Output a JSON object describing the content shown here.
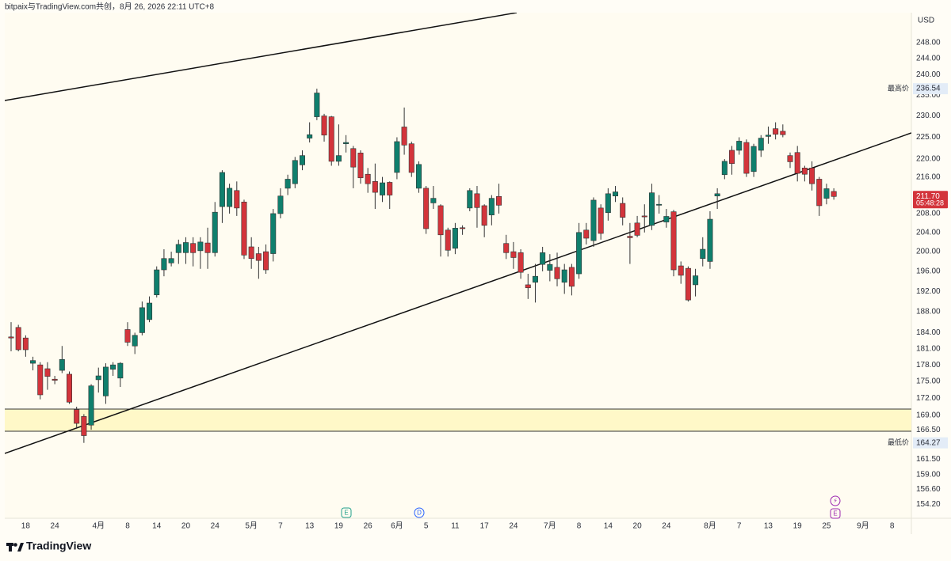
{
  "header": {
    "title": "bitpaix与TradingView.com共创，8月 26, 2026 22:11 UTC+8"
  },
  "footer": {
    "brand": "TradingView"
  },
  "chart_data": {
    "type": "candlestick",
    "currency": "USD",
    "log_scale": true,
    "grid": false,
    "up_color": "#0f7f6d",
    "down_color": "#d3343b",
    "categories": [
      null,
      null,
      "18",
      null,
      null,
      null,
      "24",
      null,
      null,
      null,
      null,
      null,
      "4月",
      null,
      null,
      null,
      "8",
      null,
      null,
      null,
      "14",
      null,
      null,
      null,
      "20",
      null,
      null,
      null,
      "24",
      null,
      null,
      null,
      null,
      "5月",
      null,
      null,
      null,
      "7",
      null,
      null,
      null,
      "13",
      null,
      null,
      null,
      "19",
      null,
      null,
      null,
      "26",
      null,
      null,
      null,
      "6月",
      null,
      null,
      null,
      "5",
      null,
      null,
      null,
      "11",
      null,
      null,
      null,
      "17",
      null,
      null,
      null,
      "24",
      null,
      null,
      null,
      null,
      "7月",
      null,
      null,
      null,
      "8",
      null,
      null,
      null,
      "14",
      null,
      null,
      null,
      "20",
      null,
      null,
      null,
      "24",
      null,
      null,
      null,
      null,
      null,
      "8月",
      null,
      null,
      null,
      "7",
      null,
      null,
      null,
      "13",
      null,
      null,
      null,
      "19",
      null,
      null,
      null,
      "25",
      null,
      null,
      null,
      null,
      "9月",
      null,
      null,
      null,
      "8",
      null,
      null
    ],
    "open": [
      183.2,
      185,
      183,
      178.3,
      178,
      177.3,
      175.4,
      177,
      176.3,
      170,
      168.8,
      167.3,
      175.3,
      172.4,
      177.2,
      175.6,
      184.6,
      181.5,
      184,
      186.5,
      191.3,
      196.3,
      197.7,
      199.8,
      199.8,
      201.7,
      200.2,
      201.8,
      199.8,
      209.5,
      209.5,
      213,
      210.5,
      201,
      199.6,
      200,
      199.6,
      208,
      213.5,
      214.5,
      218.7,
      224.8,
      229.8,
      230,
      229.8,
      219.5,
      223.5,
      222.4,
      221.4,
      216.6,
      215,
      212,
      214.8,
      217,
      227.4,
      223.5,
      213.5,
      213.5,
      210.3,
      209.7,
      204.5,
      200.7,
      205,
      209.2,
      212.3,
      209.7,
      207.7,
      211.7,
      201.7,
      200,
      199.8,
      193.3,
      193.8,
      197.4,
      196.2,
      196.8,
      193.8,
      196.8,
      195.5,
      204.5,
      202.3,
      209.2,
      208.2,
      211.8,
      210.2,
      203.2,
      206,
      207.5,
      205.5,
      209.8,
      206.2,
      208.4,
      197.1,
      196.6,
      193.3,
      198.6,
      198,
      211.8,
      216.5,
      222,
      222,
      223.8,
      217.2,
      222,
      225.2,
      227,
      226.4,
      220.8,
      221.5,
      218,
      218,
      215.5,
      211.3,
      212.8,
      null,
      null,
      null,
      null,
      null,
      null,
      null,
      null,
      null,
      null
    ],
    "high": [
      186,
      185.5,
      183.5,
      179.5,
      178.5,
      178.5,
      176,
      181.5,
      176.8,
      170.5,
      169.2,
      174.5,
      177.5,
      178.3,
      178.5,
      178.5,
      186,
      184,
      190,
      191,
      197,
      200.5,
      200,
      202.5,
      203,
      203,
      203,
      205,
      210.5,
      217.5,
      214.5,
      215,
      211,
      203,
      201,
      201.5,
      209,
      213.5,
      216.5,
      220.5,
      222,
      228.5,
      236.54,
      230.5,
      230,
      228,
      225.5,
      223,
      222,
      218,
      219,
      216,
      215,
      225,
      232,
      224,
      219.5,
      214,
      214,
      210,
      205,
      206,
      205.5,
      213.5,
      214,
      210,
      212,
      214.5,
      203.5,
      202,
      200.5,
      195.5,
      197.5,
      201,
      199.5,
      199.8,
      197.5,
      197.5,
      206,
      206,
      211.5,
      210,
      213.5,
      214,
      211.5,
      206,
      207.5,
      210,
      214.5,
      212,
      209,
      208.8,
      198,
      197,
      196.5,
      203,
      208.5,
      213.5,
      220,
      223,
      225,
      224.5,
      223.5,
      225.5,
      227.5,
      228.5,
      228,
      221.5,
      223,
      218.5,
      219.5,
      216,
      214.5,
      213.5,
      null,
      null,
      null,
      null,
      null,
      null,
      null,
      null,
      null,
      null
    ],
    "low": [
      180.5,
      180.5,
      179.5,
      177,
      171.8,
      173.5,
      174.5,
      176.5,
      171,
      166.8,
      164.27,
      166.5,
      173,
      171,
      176,
      174,
      181.5,
      180,
      183.5,
      186,
      190.8,
      195,
      197,
      197.5,
      197.5,
      197,
      196.5,
      196.5,
      199,
      206,
      208,
      207.5,
      198.5,
      196.5,
      194.5,
      195.5,
      198,
      207,
      212,
      213.5,
      217.5,
      223.8,
      229,
      224,
      218.5,
      218.5,
      221.5,
      213.5,
      214.5,
      212.5,
      209,
      210.5,
      209,
      215.5,
      221,
      216,
      212.5,
      203.7,
      209,
      199,
      199,
      199.5,
      203.5,
      208.5,
      205,
      203,
      205.5,
      208,
      198.5,
      196.5,
      194.5,
      190.5,
      189.8,
      196,
      194,
      193,
      191.5,
      191.2,
      194.5,
      201.5,
      201,
      202.5,
      206.5,
      210.5,
      205.5,
      197.5,
      203,
      204,
      204.5,
      208,
      205,
      195,
      193.5,
      190,
      191,
      197,
      196.5,
      209,
      215.5,
      216.5,
      221,
      216,
      216,
      220.5,
      223.5,
      224.5,
      225,
      218,
      215,
      215,
      213,
      207.5,
      210,
      211,
      null,
      null,
      null,
      null,
      null,
      null,
      null,
      null,
      null,
      null
    ],
    "close": [
      183,
      180.8,
      180.8,
      178.8,
      172.6,
      175.9,
      175.2,
      179,
      171.3,
      167.6,
      165.5,
      174.2,
      176,
      177.6,
      178,
      178.3,
      182.2,
      183.5,
      188.8,
      189.7,
      196.3,
      198.6,
      198.6,
      201.5,
      201.9,
      199.8,
      202,
      199.8,
      208.3,
      217,
      213.5,
      209.2,
      199.3,
      198.6,
      198.2,
      196.3,
      208,
      211.8,
      215.5,
      219.7,
      220.8,
      225.6,
      235.5,
      225.5,
      219.5,
      220.8,
      223.8,
      218.2,
      215.8,
      214.5,
      212.6,
      214.7,
      212,
      224,
      223.2,
      217,
      218.8,
      204.8,
      211.3,
      203.5,
      200.3,
      204.9,
      204.8,
      213,
      209.3,
      205.5,
      211.3,
      209.8,
      199.8,
      198.8,
      195.8,
      192.7,
      195,
      199.8,
      197.4,
      194.5,
      196.3,
      193,
      204,
      202.8,
      210.9,
      203.8,
      212.3,
      212.7,
      207.2,
      202.9,
      203.4,
      207.3,
      212.5,
      210,
      207.4,
      196.3,
      195.2,
      190.3,
      195.1,
      200.5,
      206.8,
      212.3,
      219.5,
      219,
      224.1,
      216.8,
      222.9,
      224.8,
      225.5,
      225.7,
      225.6,
      219.4,
      216.8,
      216.6,
      214.5,
      209.7,
      213.4,
      211.7,
      null,
      null,
      null,
      null,
      null,
      null,
      null,
      null,
      null,
      null
    ],
    "ylim": [
      152,
      255.8
    ],
    "yticks": [
      {
        "value": 248,
        "label": "248.00"
      },
      {
        "value": 244,
        "label": "244.00"
      },
      {
        "value": 240,
        "label": "240.00"
      },
      {
        "value": 235,
        "label": "235.00"
      },
      {
        "value": 230,
        "label": "230.00"
      },
      {
        "value": 225,
        "label": "225.00"
      },
      {
        "value": 220,
        "label": "220.00"
      },
      {
        "value": 216,
        "label": "216.00"
      },
      {
        "value": 208,
        "label": "208.00"
      },
      {
        "value": 204,
        "label": "204.00"
      },
      {
        "value": 200,
        "label": "200.00"
      },
      {
        "value": 196,
        "label": "196.00"
      },
      {
        "value": 192,
        "label": "192.00"
      },
      {
        "value": 188,
        "label": "188.00"
      },
      {
        "value": 184,
        "label": "184.00"
      },
      {
        "value": 181,
        "label": "181.00"
      },
      {
        "value": 178,
        "label": "178.00"
      },
      {
        "value": 175,
        "label": "175.00"
      },
      {
        "value": 172,
        "label": "172.00"
      },
      {
        "value": 169,
        "label": "169.00"
      },
      {
        "value": 166.5,
        "label": "166.50"
      },
      {
        "value": 161.5,
        "label": "161.50"
      },
      {
        "value": 159,
        "label": "159.00"
      },
      {
        "value": 156.6,
        "label": "156.60"
      },
      {
        "value": 154.2,
        "label": "154.20"
      }
    ],
    "price_labels": [
      {
        "name": "最高价",
        "value": 236.54,
        "label": "236.54"
      },
      {
        "name": "最低价",
        "value": 164.27,
        "label": "164.27"
      }
    ],
    "last_price": {
      "value": 211.7,
      "label": "211.70"
    },
    "countdown": "05:48:28",
    "events": [
      "E",
      "D",
      "⚡",
      "E"
    ]
  }
}
